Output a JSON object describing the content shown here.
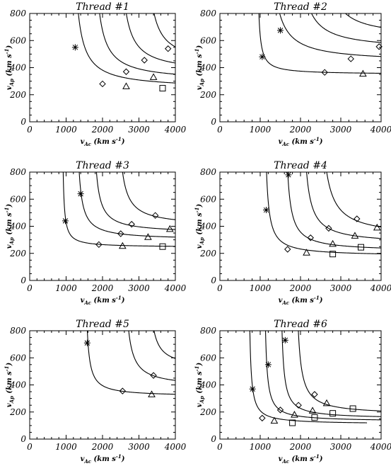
{
  "chart_data": [
    {
      "type": "line",
      "title": "Thread #1",
      "xlabel": "v_Ac (km s^-1)",
      "ylabel": "v_Ap (km s^-1)",
      "xlim": [
        0,
        4000
      ],
      "ylim": [
        0,
        800
      ],
      "xticks": [
        "0",
        "1000",
        "2000",
        "3000",
        "4000"
      ],
      "yticks": [
        "0",
        "200",
        "400",
        "600",
        "800"
      ],
      "series": [
        {
          "asym": [
            1120,
            245
          ],
          "k": 120000,
          "markers": [
            {
              "s": "asterisk",
              "x": 1250,
              "y": 550
            },
            {
              "s": "diamond",
              "x": 2000,
              "y": 280
            },
            {
              "s": "triangle",
              "x": 2650,
              "y": 262
            },
            {
              "s": "square",
              "x": 3650,
              "y": 248
            }
          ]
        },
        {
          "asym": [
            1680,
            300
          ],
          "k": 120000,
          "markers": [
            {
              "s": "diamond",
              "x": 2650,
              "y": 370
            },
            {
              "s": "triangle",
              "x": 3400,
              "y": 330
            }
          ]
        },
        {
          "asym": [
            2380,
            360
          ],
          "k": 120000,
          "markers": [
            {
              "s": "diamond",
              "x": 3150,
              "y": 455
            }
          ]
        },
        {
          "asym": [
            3100,
            420
          ],
          "k": 120000,
          "markers": [
            {
              "s": "diamond",
              "x": 3800,
              "y": 540
            }
          ]
        }
      ]
    },
    {
      "type": "line",
      "title": "Thread #2",
      "xlabel": "v_Ac (km s^-1)",
      "ylabel": "v_Ap (km s^-1)",
      "xlim": [
        0,
        4000
      ],
      "ylim": [
        0,
        800
      ],
      "xticks": [
        "0",
        "1000",
        "2000",
        "3000",
        "4000"
      ],
      "yticks": [
        "0",
        "200",
        "400",
        "600",
        "800"
      ],
      "series": [
        {
          "asym": [
            910,
            350
          ],
          "k": 26000,
          "markers": [
            {
              "s": "asterisk",
              "x": 1050,
              "y": 480
            },
            {
              "s": "diamond",
              "x": 2600,
              "y": 365
            },
            {
              "s": "triangle",
              "x": 3550,
              "y": 355
            }
          ]
        },
        {
          "asym": [
            1150,
            440
          ],
          "k": 120000,
          "markers": [
            {
              "s": "asterisk",
              "x": 1500,
              "y": 675
            },
            {
              "s": "diamond",
              "x": 3250,
              "y": 465
            }
          ]
        },
        {
          "asym": [
            1830,
            530
          ],
          "k": 120000,
          "markers": [
            {
              "s": "diamond",
              "x": 3950,
              "y": 555
            }
          ]
        },
        {
          "asym": [
            2450,
            620
          ],
          "k": 120000,
          "markers": []
        }
      ]
    },
    {
      "type": "line",
      "title": "Thread #3",
      "xlabel": "v_Ac (km s^-1)",
      "ylabel": "v_Ap (km s^-1)",
      "xlim": [
        0,
        4000
      ],
      "ylim": [
        0,
        800
      ],
      "xticks": [
        "0",
        "1000",
        "2000",
        "3000",
        "4000"
      ],
      "yticks": [
        "0",
        "200",
        "400",
        "600",
        "800"
      ],
      "series": [
        {
          "asym": [
            880,
            245
          ],
          "k": 22000,
          "markers": [
            {
              "s": "asterisk",
              "x": 980,
              "y": 440
            },
            {
              "s": "diamond",
              "x": 1900,
              "y": 265
            },
            {
              "s": "triangle",
              "x": 2550,
              "y": 255
            },
            {
              "s": "square",
              "x": 3650,
              "y": 250
            }
          ]
        },
        {
          "asym": [
            1250,
            300
          ],
          "k": 55000,
          "markers": [
            {
              "s": "asterisk",
              "x": 1400,
              "y": 640
            },
            {
              "s": "diamond",
              "x": 2500,
              "y": 345
            },
            {
              "s": "triangle",
              "x": 3250,
              "y": 320
            }
          ]
        },
        {
          "asym": [
            1700,
            350
          ],
          "k": 60000,
          "markers": [
            {
              "s": "diamond",
              "x": 2800,
              "y": 415
            },
            {
              "s": "triangle",
              "x": 3850,
              "y": 380
            }
          ]
        },
        {
          "asym": [
            2350,
            400
          ],
          "k": 80000,
          "markers": [
            {
              "s": "diamond",
              "x": 3450,
              "y": 480
            }
          ]
        }
      ]
    },
    {
      "type": "line",
      "title": "Thread #4",
      "xlabel": "v_Ac (km s^-1)",
      "ylabel": "v_Ap (km s^-1)",
      "xlim": [
        0,
        4000
      ],
      "ylim": [
        0,
        800
      ],
      "xticks": [
        "0",
        "1000",
        "2000",
        "3000",
        "4000"
      ],
      "yticks": [
        "0",
        "200",
        "400",
        "600",
        "800"
      ],
      "series": [
        {
          "asym": [
            1080,
            180
          ],
          "k": 48000,
          "markers": [
            {
              "s": "asterisk",
              "x": 1150,
              "y": 520
            },
            {
              "s": "diamond",
              "x": 1680,
              "y": 230
            },
            {
              "s": "triangle",
              "x": 2150,
              "y": 205
            },
            {
              "s": "square",
              "x": 2800,
              "y": 195
            }
          ]
        },
        {
          "asym": [
            1580,
            215
          ],
          "k": 60000,
          "markers": [
            {
              "s": "asterisk",
              "x": 1700,
              "y": 780
            },
            {
              "s": "diamond",
              "x": 2250,
              "y": 315
            },
            {
              "s": "triangle",
              "x": 2800,
              "y": 270
            },
            {
              "s": "square",
              "x": 3500,
              "y": 245
            }
          ]
        },
        {
          "asym": [
            2000,
            270
          ],
          "k": 80000,
          "markers": [
            {
              "s": "diamond",
              "x": 2700,
              "y": 385
            },
            {
              "s": "triangle",
              "x": 3350,
              "y": 330
            }
          ]
        },
        {
          "asym": [
            2400,
            320
          ],
          "k": 120000,
          "markers": [
            {
              "s": "diamond",
              "x": 3400,
              "y": 455
            },
            {
              "s": "triangle",
              "x": 3900,
              "y": 390
            }
          ]
        }
      ]
    },
    {
      "type": "line",
      "title": "Thread #5",
      "xlabel": "v_Ac (km s^-1)",
      "ylabel": "v_Ap (km s^-1)",
      "xlim": [
        0,
        4000
      ],
      "ylim": [
        0,
        800
      ],
      "xticks": [
        "0",
        "1000",
        "2000",
        "3000",
        "4000"
      ],
      "yticks": [
        "0",
        "200",
        "400",
        "600",
        "800"
      ],
      "series": [
        {
          "asym": [
            1500,
            315
          ],
          "k": 40000,
          "markers": [
            {
              "s": "asterisk",
              "x": 1580,
              "y": 710
            },
            {
              "s": "diamond",
              "x": 2550,
              "y": 355
            },
            {
              "s": "triangle",
              "x": 3350,
              "y": 330
            }
          ]
        },
        {
          "asym": [
            2550,
            385
          ],
          "k": 70000,
          "markers": [
            {
              "s": "diamond",
              "x": 3400,
              "y": 470
            }
          ]
        },
        {
          "asym": [
            3200,
            520
          ],
          "k": 60000,
          "markers": []
        }
      ]
    },
    {
      "type": "line",
      "title": "Thread #6",
      "xlabel": "v_Ac (km s^-1)",
      "ylabel": "v_Ap (km s^-1)",
      "xlim": [
        0,
        4000
      ],
      "ylim": [
        0,
        800
      ],
      "xticks": [
        "0",
        "1000",
        "2000",
        "3000",
        "4000"
      ],
      "yticks": [
        "0",
        "200",
        "400",
        "600",
        "800"
      ],
      "series": [
        {
          "asym": [
            700,
            110
          ],
          "k": 30000,
          "xmax": 3650,
          "markers": [
            {
              "s": "asterisk",
              "x": 810,
              "y": 370
            },
            {
              "s": "diamond",
              "x": 1050,
              "y": 155
            },
            {
              "s": "triangle",
              "x": 1350,
              "y": 135
            },
            {
              "s": "square",
              "x": 1800,
              "y": 120
            }
          ]
        },
        {
          "asym": [
            1080,
            130
          ],
          "k": 35000,
          "markers": [
            {
              "s": "asterisk",
              "x": 1200,
              "y": 550
            },
            {
              "s": "diamond",
              "x": 1500,
              "y": 215
            },
            {
              "s": "triangle",
              "x": 1850,
              "y": 180
            },
            {
              "s": "square",
              "x": 2350,
              "y": 160
            }
          ]
        },
        {
          "asym": [
            1480,
            150
          ],
          "k": 40000,
          "markers": [
            {
              "s": "asterisk",
              "x": 1620,
              "y": 730
            },
            {
              "s": "diamond",
              "x": 1950,
              "y": 250
            },
            {
              "s": "triangle",
              "x": 2300,
              "y": 210
            },
            {
              "s": "square",
              "x": 2800,
              "y": 190
            }
          ]
        },
        {
          "asym": [
            1850,
            180
          ],
          "k": 60000,
          "markers": [
            {
              "s": "diamond",
              "x": 2350,
              "y": 330
            },
            {
              "s": "triangle",
              "x": 2650,
              "y": 265
            },
            {
              "s": "square",
              "x": 3300,
              "y": 225
            }
          ]
        }
      ]
    }
  ]
}
